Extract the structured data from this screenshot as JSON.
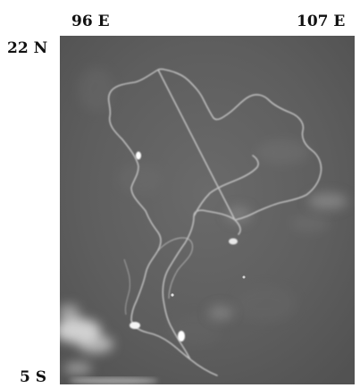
{
  "map": {
    "labels": {
      "top_left": "96 E",
      "top_right": "107 E",
      "left_top": "22 N",
      "left_bottom": "5 S"
    },
    "colors": {
      "background": "#5f5f5f",
      "coastline": "#c9c9c9",
      "cloud": "#e6e6e6",
      "hotspot": "#ffffff"
    }
  }
}
